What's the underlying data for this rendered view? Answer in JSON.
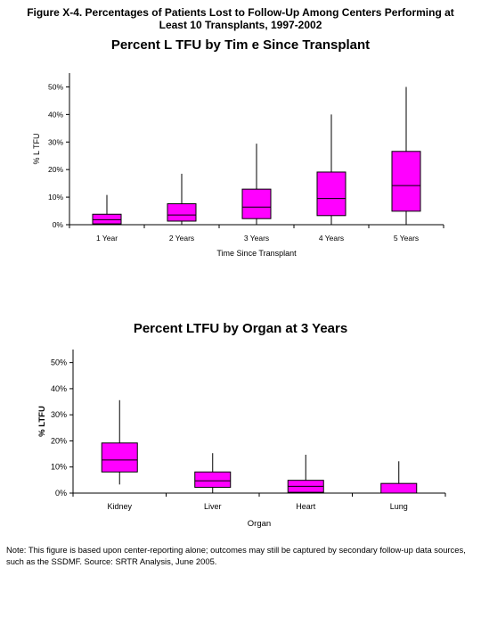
{
  "figure_title": "Figure X-4. Percentages of Patients Lost to Follow-Up Among Centers Performing at Least 10 Transplants, 1997-2002",
  "note": "Note: This figure is based upon center-reporting alone; outcomes may still be captured by secondary follow-up data sources, such as the SSDMF. Source: SRTR Analysis, June 2005.",
  "colors": {
    "box_fill": "#ff00ff",
    "stroke": "#000000"
  },
  "chart_data": [
    {
      "type": "box",
      "title": "Percent L TFU by Tim e Since Transplant",
      "xlabel": "Time Since Transplant",
      "ylabel": "% L TFU",
      "ylim": [
        0,
        55
      ],
      "yticks": [
        "0%",
        "10%",
        "20%",
        "30%",
        "40%",
        "50%"
      ],
      "ytick_values": [
        0,
        10,
        20,
        30,
        40,
        50
      ],
      "grid": false,
      "categories": [
        "1 Year",
        "2 Years",
        "3 Years",
        "4 Years",
        "5 Years"
      ],
      "series": [
        {
          "min": 0,
          "q1": 0.3,
          "median": 1.8,
          "q3": 3.8,
          "max": 10.8
        },
        {
          "min": 0,
          "q1": 1.3,
          "median": 3.5,
          "q3": 7.6,
          "max": 18.5
        },
        {
          "min": 0,
          "q1": 2.2,
          "median": 6.4,
          "q3": 12.9,
          "max": 29.4
        },
        {
          "min": 0,
          "q1": 3.3,
          "median": 9.5,
          "q3": 19.1,
          "max": 40.0
        },
        {
          "min": 0,
          "q1": 4.9,
          "median": 14.2,
          "q3": 26.6,
          "max": 50.0
        }
      ]
    },
    {
      "type": "box",
      "title": "Percent LTFU by Organ at 3 Years",
      "xlabel": "Organ",
      "ylabel": "% LTFU",
      "ylim": [
        0,
        55
      ],
      "yticks": [
        "0%",
        "10%",
        "20%",
        "30%",
        "40%",
        "50%"
      ],
      "ytick_values": [
        0,
        10,
        20,
        30,
        40,
        50
      ],
      "grid": false,
      "categories": [
        "Kidney",
        "Liver",
        "Heart",
        "Lung"
      ],
      "series": [
        {
          "min": 3.3,
          "q1": 8.1,
          "median": 12.7,
          "q3": 19.2,
          "max": 35.6
        },
        {
          "min": 0,
          "q1": 2.2,
          "median": 4.7,
          "q3": 8.1,
          "max": 15.3
        },
        {
          "min": 0,
          "q1": 0.3,
          "median": 2.6,
          "q3": 4.9,
          "max": 14.7
        },
        {
          "min": 0,
          "q1": 0,
          "median": 0,
          "q3": 3.7,
          "max": 12.2
        }
      ]
    }
  ]
}
